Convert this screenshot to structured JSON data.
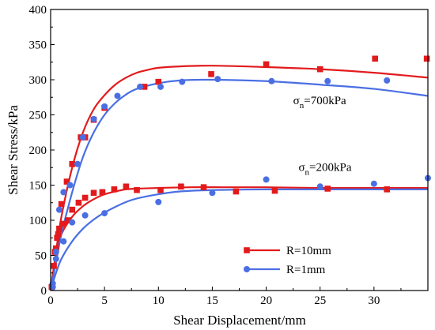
{
  "chart_data": {
    "type": "scatter",
    "title": "",
    "xlabel": "Shear Displacement/mm",
    "ylabel": "Shear Stress/kPa",
    "xlim": [
      0,
      35
    ],
    "ylim": [
      0,
      400
    ],
    "xticks": [
      0,
      5,
      10,
      15,
      20,
      25,
      30
    ],
    "yticks": [
      0,
      50,
      100,
      150,
      200,
      250,
      300,
      350,
      400
    ],
    "grid": false,
    "legend_position": "bottom-right",
    "annotations": [
      {
        "text_main": "σ",
        "text_sub": "n",
        "text_rest": "=700kPa",
        "x": 22.5,
        "y": 265
      },
      {
        "text_main": "σ",
        "text_sub": "n",
        "text_rest": "=200kPa",
        "x": 23.0,
        "y": 170
      }
    ],
    "series": [
      {
        "name": "R=10mm",
        "color": "#e31a1c",
        "marker": "square",
        "groups": [
          {
            "label": "700kPa",
            "points": [
              [
                0.1,
                5
              ],
              [
                0.3,
                35
              ],
              [
                0.5,
                60
              ],
              [
                0.7,
                80
              ],
              [
                1.0,
                123
              ],
              [
                1.5,
                155
              ],
              [
                2.0,
                180
              ],
              [
                2.8,
                218
              ],
              [
                3.2,
                218
              ],
              [
                4.0,
                243
              ],
              [
                5.0,
                260
              ],
              [
                8.7,
                290
              ],
              [
                10.0,
                297
              ],
              [
                14.9,
                308
              ],
              [
                20.0,
                322
              ],
              [
                25.0,
                315
              ],
              [
                30.1,
                330
              ],
              [
                34.9,
                330
              ]
            ]
          },
          {
            "label": "200kPa",
            "points": [
              [
                0.1,
                5
              ],
              [
                0.4,
                55
              ],
              [
                0.6,
                75
              ],
              [
                0.8,
                88
              ],
              [
                1.2,
                95
              ],
              [
                1.6,
                100
              ],
              [
                2.0,
                115
              ],
              [
                2.6,
                125
              ],
              [
                3.2,
                132
              ],
              [
                4.0,
                139
              ],
              [
                4.8,
                140
              ],
              [
                5.9,
                144
              ],
              [
                7.0,
                148
              ],
              [
                8.0,
                143
              ],
              [
                10.2,
                143
              ],
              [
                12.1,
                148
              ],
              [
                14.2,
                147
              ],
              [
                17.2,
                141
              ],
              [
                20.8,
                142
              ],
              [
                25.7,
                145
              ],
              [
                31.2,
                144
              ]
            ]
          }
        ],
        "fit_curves": [
          {
            "label": "700kPa",
            "points": [
              [
                0,
                0
              ],
              [
                0.5,
                55
              ],
              [
                1.0,
                105
              ],
              [
                2.0,
                175
              ],
              [
                3.0,
                225
              ],
              [
                4.0,
                258
              ],
              [
                5.0,
                278
              ],
              [
                6.0,
                293
              ],
              [
                7.0,
                303
              ],
              [
                8.0,
                310
              ],
              [
                9.0,
                314
              ],
              [
                10.0,
                317
              ],
              [
                12.0,
                319
              ],
              [
                15.0,
                320
              ],
              [
                20.0,
                318
              ],
              [
                25.0,
                315
              ],
              [
                30.0,
                310
              ],
              [
                35.0,
                303
              ]
            ]
          },
          {
            "label": "200kPa",
            "points": [
              [
                0,
                0
              ],
              [
                0.5,
                50
              ],
              [
                1.0,
                80
              ],
              [
                2.0,
                105
              ],
              [
                3.0,
                120
              ],
              [
                4.0,
                130
              ],
              [
                5.0,
                137
              ],
              [
                6.0,
                141
              ],
              [
                7.0,
                144
              ],
              [
                8.0,
                145
              ],
              [
                10.0,
                146
              ],
              [
                13.0,
                147
              ],
              [
                16.0,
                147
              ],
              [
                20.0,
                147
              ],
              [
                25.0,
                146
              ],
              [
                30.0,
                146
              ],
              [
                35.0,
                146
              ]
            ]
          }
        ]
      },
      {
        "name": "R=1mm",
        "color": "#4a6fe3",
        "marker": "circle",
        "groups": [
          {
            "label": "700kPa",
            "points": [
              [
                0.2,
                10
              ],
              [
                0.5,
                55
              ],
              [
                0.8,
                115
              ],
              [
                1.2,
                140
              ],
              [
                1.8,
                150
              ],
              [
                2.5,
                180
              ],
              [
                3.0,
                218
              ],
              [
                4.0,
                244
              ],
              [
                5.0,
                262
              ],
              [
                6.2,
                277
              ],
              [
                8.3,
                290
              ],
              [
                10.2,
                290
              ],
              [
                12.2,
                297
              ],
              [
                15.5,
                301
              ],
              [
                20.5,
                298
              ],
              [
                25.7,
                298
              ],
              [
                31.2,
                299
              ]
            ]
          },
          {
            "label": "200kPa",
            "points": [
              [
                0.2,
                5
              ],
              [
                0.5,
                45
              ],
              [
                1.2,
                70
              ],
              [
                2.0,
                97
              ],
              [
                3.2,
                107
              ],
              [
                5.0,
                110
              ],
              [
                10.0,
                126
              ],
              [
                15.0,
                139
              ],
              [
                20.0,
                158
              ],
              [
                25.0,
                148
              ],
              [
                30.0,
                152
              ],
              [
                35.0,
                160
              ]
            ]
          }
        ],
        "fit_curves": [
          {
            "label": "700kPa",
            "points": [
              [
                0,
                0
              ],
              [
                0.5,
                40
              ],
              [
                1.0,
                80
              ],
              [
                2.0,
                140
              ],
              [
                3.0,
                190
              ],
              [
                4.0,
                225
              ],
              [
                5.0,
                250
              ],
              [
                6.0,
                267
              ],
              [
                7.0,
                279
              ],
              [
                8.0,
                287
              ],
              [
                10.0,
                295
              ],
              [
                12.0,
                299
              ],
              [
                15.0,
                300
              ],
              [
                20.0,
                298
              ],
              [
                25.0,
                293
              ],
              [
                30.0,
                287
              ],
              [
                35.0,
                277
              ]
            ]
          },
          {
            "label": "200kPa",
            "points": [
              [
                0,
                0
              ],
              [
                0.5,
                25
              ],
              [
                1.0,
                45
              ],
              [
                2.0,
                70
              ],
              [
                3.0,
                88
              ],
              [
                4.0,
                101
              ],
              [
                5.0,
                111
              ],
              [
                6.0,
                119
              ],
              [
                7.0,
                126
              ],
              [
                8.0,
                131
              ],
              [
                10.0,
                137
              ],
              [
                12.0,
                141
              ],
              [
                15.0,
                143
              ],
              [
                20.0,
                144
              ],
              [
                25.0,
                144
              ],
              [
                30.0,
                144
              ],
              [
                35.0,
                144
              ]
            ]
          }
        ]
      }
    ]
  }
}
